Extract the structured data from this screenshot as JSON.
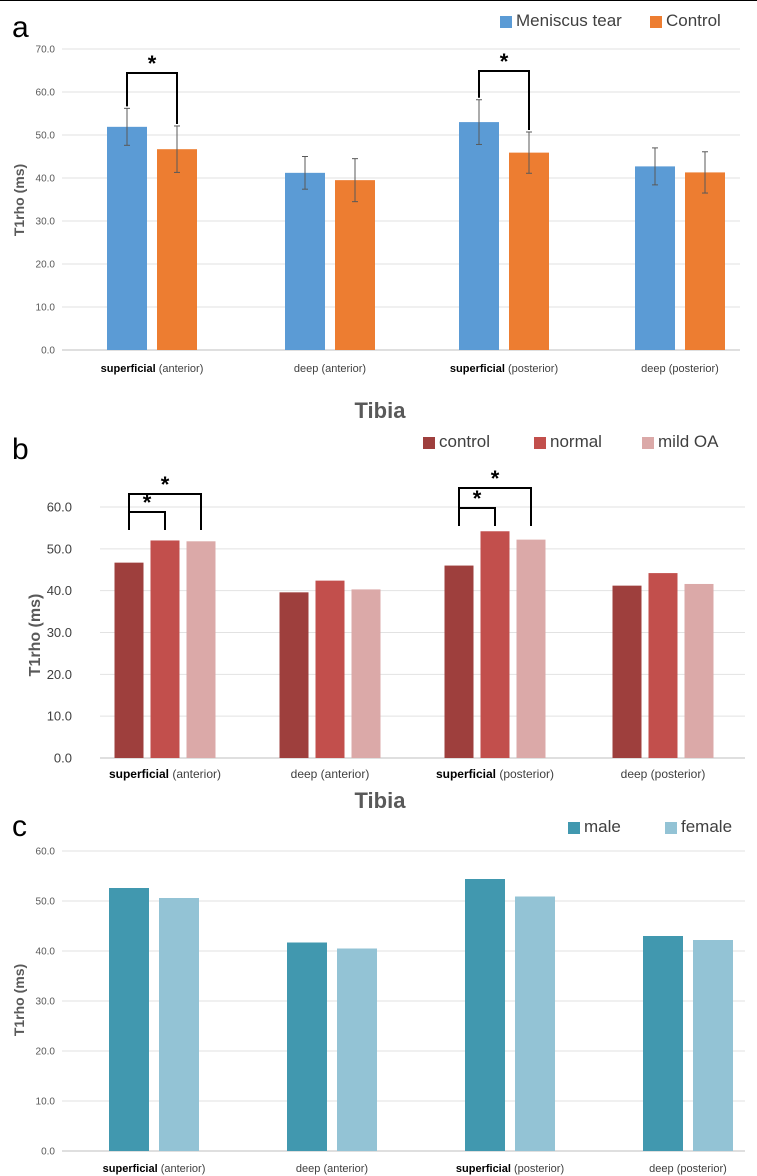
{
  "chart_data": [
    {
      "type": "bar",
      "panel_label": "a",
      "categories": [
        {
          "bold": "superficial",
          "rest": " (anterior)"
        },
        {
          "bold": "",
          "rest": "deep (anterior)"
        },
        {
          "bold": "superficial",
          "rest": " (posterior)"
        },
        {
          "bold": "",
          "rest": "deep (posterior)"
        }
      ],
      "series": [
        {
          "name": "Meniscus tear",
          "color": "#5B9BD5",
          "values": [
            51.9,
            41.2,
            53.0,
            42.7
          ],
          "errors": [
            4.3,
            3.8,
            5.2,
            4.3
          ]
        },
        {
          "name": "Control",
          "color": "#ED7D31",
          "values": [
            46.7,
            39.5,
            45.9,
            41.3
          ],
          "errors": [
            5.4,
            5.0,
            4.8,
            4.8
          ]
        }
      ],
      "ylabel": "T1rho (ms)",
      "xlabel": "",
      "ylim": [
        0,
        70
      ],
      "yticks": [
        "0.0",
        "10.0",
        "20.0",
        "30.0",
        "40.0",
        "50.0",
        "60.0",
        "70.0"
      ],
      "grid": true,
      "legend_position": "top-right",
      "significance": [
        {
          "category": 0,
          "from_series": 0,
          "to_series": 1,
          "label": "*"
        },
        {
          "category": 2,
          "from_series": 0,
          "to_series": 1,
          "label": "*"
        }
      ]
    },
    {
      "type": "bar",
      "panel_label": "b",
      "categories": [
        {
          "bold": "superficial",
          "rest": " (anterior)"
        },
        {
          "bold": "",
          "rest": "deep (anterior)"
        },
        {
          "bold": "superficial",
          "rest": " (posterior)"
        },
        {
          "bold": "",
          "rest": "deep (posterior)"
        }
      ],
      "series": [
        {
          "name": "control",
          "color": "#9E3F3D",
          "values": [
            46.7,
            39.6,
            46.0,
            41.2
          ]
        },
        {
          "name": "normal",
          "color": "#C24F4C",
          "values": [
            52.0,
            42.4,
            54.2,
            44.2
          ]
        },
        {
          "name": "mild OA",
          "color": "#DBA9A8",
          "values": [
            51.8,
            40.3,
            52.2,
            41.6
          ]
        }
      ],
      "title": "Tibia",
      "ylabel": "T1rho (ms)",
      "xlabel": "",
      "ylim": [
        0,
        60
      ],
      "yticks": [
        "0.0",
        "10.0",
        "20.0",
        "30.0",
        "40.0",
        "50.0",
        "60.0"
      ],
      "grid": true,
      "legend_position": "top-right",
      "significance": [
        {
          "category": 0,
          "from_series": 0,
          "to_series": 1,
          "label": "*"
        },
        {
          "category": 0,
          "from_series": 0,
          "to_series": 2,
          "label": "*"
        },
        {
          "category": 2,
          "from_series": 0,
          "to_series": 1,
          "label": "*"
        },
        {
          "category": 2,
          "from_series": 0,
          "to_series": 2,
          "label": "*"
        }
      ]
    },
    {
      "type": "bar",
      "panel_label": "c",
      "categories": [
        {
          "bold": "superficial",
          "rest": " (anterior)"
        },
        {
          "bold": "",
          "rest": "deep (anterior)"
        },
        {
          "bold": "superficial",
          "rest": " (posterior)"
        },
        {
          "bold": "",
          "rest": "deep (posterior)"
        }
      ],
      "series": [
        {
          "name": "male",
          "color": "#4198AF",
          "values": [
            52.6,
            41.7,
            54.4,
            43.0
          ]
        },
        {
          "name": "female",
          "color": "#93C3D5",
          "values": [
            50.6,
            40.5,
            50.9,
            42.2
          ]
        }
      ],
      "title": "Tibia",
      "ylabel": "T1rho (ms)",
      "xlabel": "",
      "ylim": [
        0,
        60
      ],
      "yticks": [
        "0.0",
        "10.0",
        "20.0",
        "30.0",
        "40.0",
        "50.0",
        "60.0"
      ],
      "grid": true,
      "legend_position": "top-right",
      "significance": []
    }
  ]
}
